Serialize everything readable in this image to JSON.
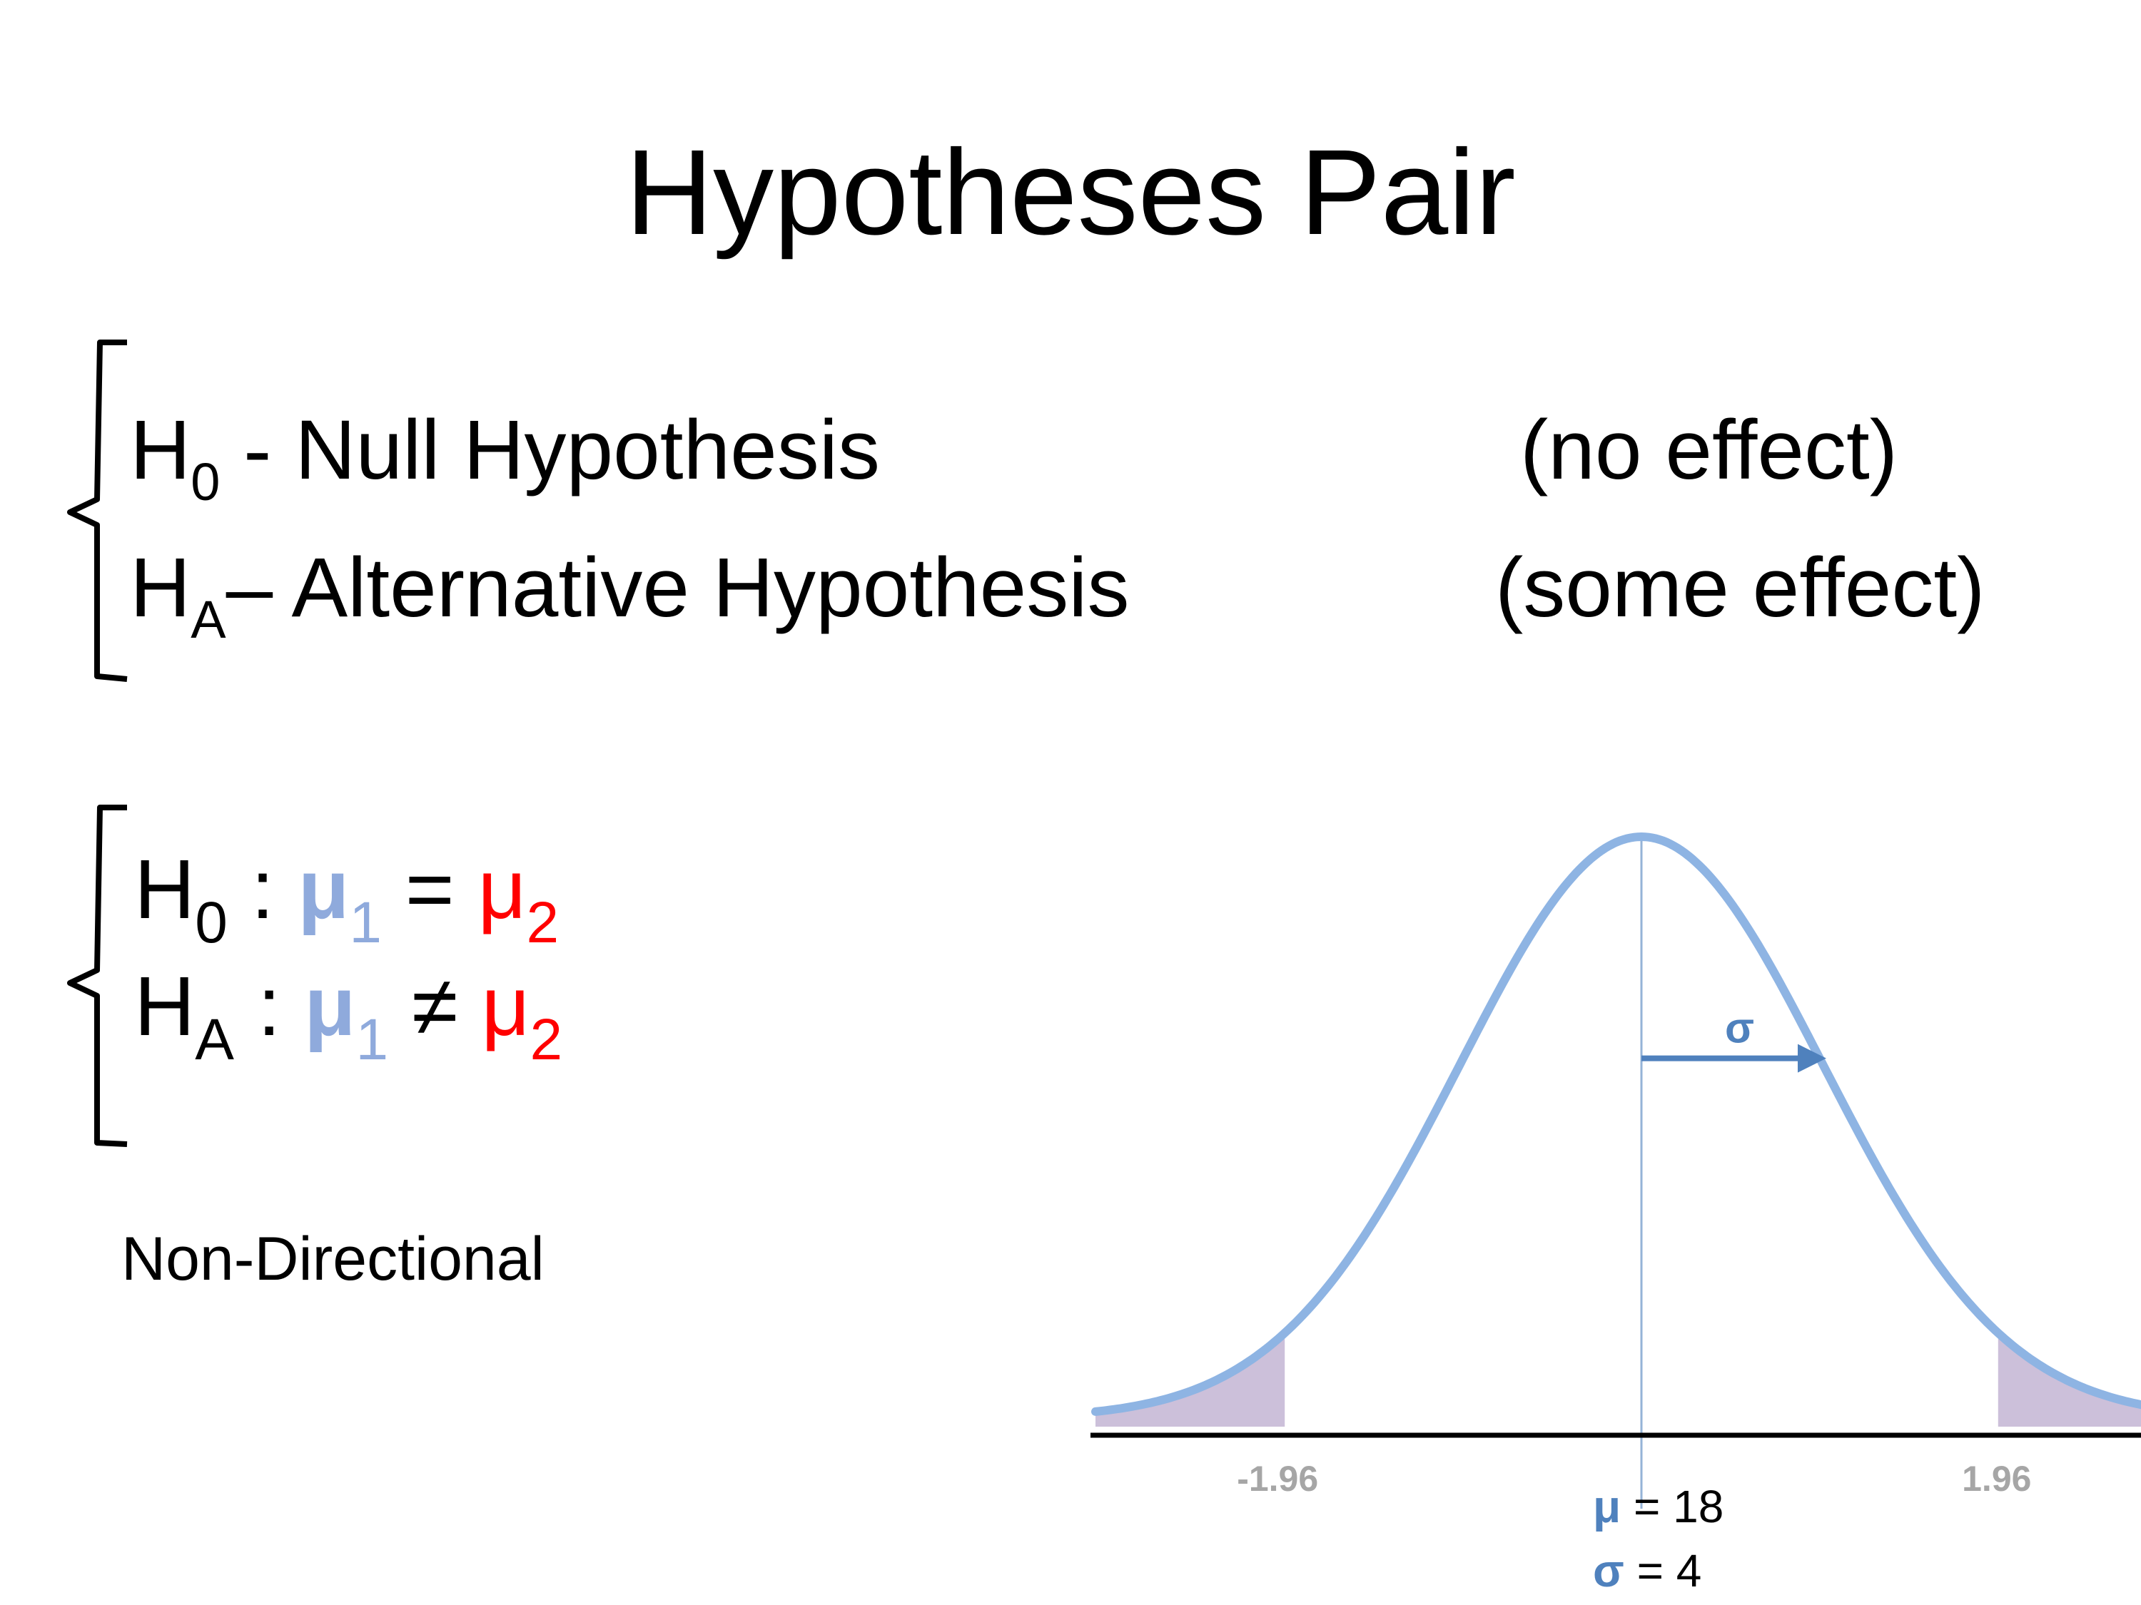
{
  "title": "Hypotheses Pair",
  "definitions": {
    "null": {
      "symbol": "H",
      "subscript": "0",
      "text": " - Null Hypothesis",
      "note": "(no effect)"
    },
    "alt": {
      "symbol": "H",
      "subscript": "A",
      "text": "– Alternative Hypothesis",
      "note": "(some effect)"
    }
  },
  "equations": {
    "null": {
      "symbol": "H",
      "subscript": "0",
      "colon": " : ",
      "mu": "μ",
      "sub1": "1",
      "op": " = ",
      "sub2": "2"
    },
    "alt": {
      "symbol": "H",
      "subscript": "A",
      "colon": " : ",
      "mu": "μ",
      "sub1": "1",
      "op": " ≠ ",
      "sub2": "2"
    }
  },
  "test_type": "Non-Directional",
  "chart_data": {
    "type": "area",
    "distribution": "normal",
    "tick_labels": [
      "-1.96",
      "1.96"
    ],
    "shaded_tails": [
      [
        -3.0,
        -1.96
      ],
      [
        1.96,
        3.0
      ]
    ],
    "sigma_arrow_label": "σ",
    "params": [
      {
        "symbol": "μ",
        "text": " = 18"
      },
      {
        "symbol": "σ",
        "text": " = 4"
      }
    ],
    "colors": {
      "curve": "#8eb4e3",
      "shade": "#ccc0da",
      "arrow": "#4f81bd",
      "mean_line": "#95b3d7",
      "tick_text": "#a6a6a6"
    }
  }
}
